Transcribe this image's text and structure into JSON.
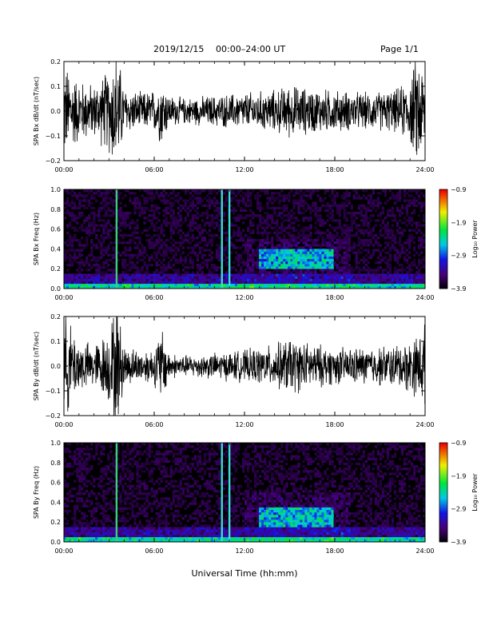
{
  "header": {
    "date_label": "2019/12/15",
    "range_label": "00:00–24:00 UT",
    "page_label": "Page 1/1"
  },
  "footer": {
    "xlabel": "Universal Time (hh:mm)"
  },
  "colors": {
    "trace": "#000000",
    "spectrogram_background": "#000000"
  },
  "chart_data": [
    {
      "type": "line",
      "ylabel": "SPA Bx dB/dt (nT/sec)",
      "ylim": [
        -0.2,
        0.2
      ],
      "yticks": [
        -0.2,
        -0.1,
        0.0,
        0.1,
        0.2
      ],
      "ytick_labels": [
        "−0.2",
        "−0.1",
        "0.0",
        "0.1",
        "0.2"
      ],
      "xlim_hours": [
        0,
        24
      ],
      "xtick_labels": [
        "00:00",
        "06:00",
        "12:00",
        "18:00",
        "24:00"
      ],
      "envelope": {
        "hours": [
          0,
          1,
          2,
          3,
          3.5,
          4,
          5,
          6,
          6.5,
          7,
          8,
          10,
          12,
          14,
          15,
          16,
          18,
          20,
          22,
          23,
          23.5,
          24
        ],
        "amplitude": [
          0.18,
          0.12,
          0.1,
          0.16,
          0.25,
          0.09,
          0.07,
          0.08,
          0.13,
          0.06,
          0.05,
          0.06,
          0.07,
          0.08,
          0.1,
          0.09,
          0.08,
          0.07,
          0.08,
          0.12,
          0.22,
          0.15
        ]
      }
    },
    {
      "type": "heatmap",
      "ylabel": "SPA Bx Freq (Hz)",
      "ylim": [
        0.0,
        1.0
      ],
      "yticks": [
        0.0,
        0.2,
        0.4,
        0.6,
        0.8,
        1.0
      ],
      "ytick_labels": [
        "0.0",
        "0.2",
        "0.4",
        "0.6",
        "0.8",
        "1.0"
      ],
      "xlim_hours": [
        0,
        24
      ],
      "xtick_labels": [
        "00:00",
        "06:00",
        "12:00",
        "18:00",
        "24:00"
      ],
      "colorbar": {
        "label": "Log₁₀ Power",
        "range": [
          -3.9,
          -0.9
        ],
        "tick_labels": [
          "−0.9",
          "−1.9",
          "−2.9",
          "−3.9"
        ]
      },
      "vertical_lines_hours": [
        3.5,
        10.5,
        11.0
      ],
      "activity_band": {
        "start_hours": 13,
        "end_hours": 18,
        "freq_low": 0.2,
        "freq_high": 0.4
      }
    },
    {
      "type": "line",
      "ylabel": "SPA By dB/dt (nT/sec)",
      "ylim": [
        -0.2,
        0.2
      ],
      "yticks": [
        -0.2,
        -0.1,
        0.0,
        0.1,
        0.2
      ],
      "ytick_labels": [
        "−0.2",
        "−0.1",
        "0.0",
        "0.1",
        "0.2"
      ],
      "xlim_hours": [
        0,
        24
      ],
      "xtick_labels": [
        "00:00",
        "06:00",
        "12:00",
        "18:00",
        "24:00"
      ],
      "envelope": {
        "hours": [
          0,
          1,
          2,
          3,
          3.5,
          4,
          5,
          6,
          6.5,
          7,
          8,
          10,
          12,
          14,
          15,
          16,
          18,
          20,
          22,
          23,
          23.5,
          24
        ],
        "amplitude": [
          0.2,
          0.1,
          0.08,
          0.14,
          0.25,
          0.08,
          0.06,
          0.07,
          0.15,
          0.05,
          0.04,
          0.05,
          0.06,
          0.08,
          0.11,
          0.09,
          0.07,
          0.07,
          0.08,
          0.1,
          0.12,
          0.16
        ]
      }
    },
    {
      "type": "heatmap",
      "ylabel": "SPA By Freq (Hz)",
      "ylim": [
        0.0,
        1.0
      ],
      "yticks": [
        0.0,
        0.2,
        0.4,
        0.6,
        0.8,
        1.0
      ],
      "ytick_labels": [
        "0.0",
        "0.2",
        "0.4",
        "0.6",
        "0.8",
        "1.0"
      ],
      "xlim_hours": [
        0,
        24
      ],
      "xtick_labels": [
        "00:00",
        "06:00",
        "12:00",
        "18:00",
        "24:00"
      ],
      "colorbar": {
        "label": "Log₁₀ Power",
        "range": [
          -3.9,
          -0.9
        ],
        "tick_labels": [
          "−0.9",
          "−1.9",
          "−2.9",
          "−3.9"
        ]
      },
      "vertical_lines_hours": [
        3.5,
        10.5,
        11.0
      ],
      "activity_band": {
        "start_hours": 13,
        "end_hours": 18,
        "freq_low": 0.15,
        "freq_high": 0.35
      }
    }
  ]
}
